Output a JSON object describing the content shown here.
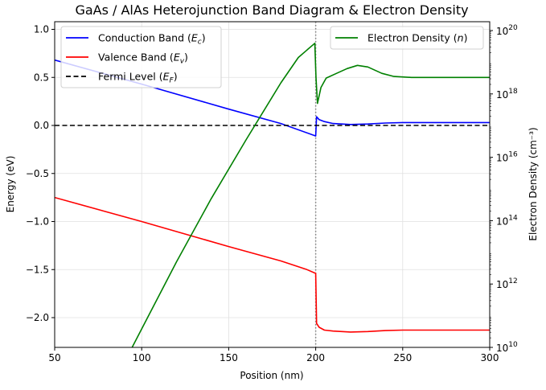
{
  "chart_data": {
    "type": "line",
    "title": "GaAs / AlAs Heterojunction Band Diagram & Electron Density",
    "xlabel": "Position (nm)",
    "ylabel": "Energy (eV)",
    "y2label": "Electron Density (cm⁻³)",
    "xlim": [
      50,
      300
    ],
    "ylim": [
      -2.31,
      1.08
    ],
    "y2scale": "log",
    "y2lim_exp": [
      10,
      20.05
    ],
    "xticks": [
      "50",
      "100",
      "150",
      "200",
      "250",
      "300"
    ],
    "yticks": [
      "1.0",
      "0.5",
      "0.0",
      "−0.5",
      "−1.0",
      "−1.5",
      "−2.0"
    ],
    "y2ticks_exp": [
      "20",
      "18",
      "16",
      "14",
      "12",
      "10"
    ],
    "grid": true,
    "interface_line_x": 200,
    "legend_left": [
      {
        "label": "Conduction Band (",
        "sym": "E",
        "sub": "c",
        "color": "#0000ff",
        "dash": false
      },
      {
        "label": "Valence Band (",
        "sym": "E",
        "sub": "v",
        "color": "#ff0000",
        "dash": false
      },
      {
        "label": "Fermi Level (",
        "sym": "E",
        "sub": "F",
        "color": "#000000",
        "dash": true
      }
    ],
    "legend_right": [
      {
        "label": "Electron Density (",
        "sym": "n",
        "color": "#008000"
      }
    ],
    "series": [
      {
        "name": "Conduction Band (Ec)",
        "axis": "left",
        "color": "#0000ff",
        "x": [
          50,
          100,
          150,
          180,
          200,
          200.5,
          202,
          205,
          210,
          220,
          230,
          240,
          250,
          275,
          300
        ],
        "y": [
          0.68,
          0.43,
          0.17,
          0.02,
          -0.11,
          0.09,
          0.06,
          0.04,
          0.02,
          0.01,
          0.015,
          0.025,
          0.03,
          0.03,
          0.03
        ]
      },
      {
        "name": "Valence Band (Ev)",
        "axis": "left",
        "color": "#ff0000",
        "x": [
          50,
          100,
          150,
          180,
          195,
          200,
          200.5,
          202,
          205,
          210,
          220,
          230,
          240,
          250,
          275,
          300
        ],
        "y": [
          -0.75,
          -1.0,
          -1.26,
          -1.41,
          -1.5,
          -1.54,
          -2.06,
          -2.1,
          -2.13,
          -2.14,
          -2.15,
          -2.145,
          -2.135,
          -2.13,
          -2.13,
          -2.13
        ]
      },
      {
        "name": "Fermi Level (EF)",
        "axis": "left",
        "color": "#000000",
        "dash": true,
        "x": [
          50,
          300
        ],
        "y": [
          0.0,
          0.0
        ]
      },
      {
        "name": "Electron Density (n)",
        "axis": "right",
        "color": "#008000",
        "x": [
          94.5,
          120,
          140,
          160,
          180,
          190,
          199.5,
          200.2,
          201,
          203,
          206,
          212,
          218,
          224,
          230,
          238,
          245,
          255,
          275,
          300
        ],
        "log10_y": [
          10.0,
          12.7,
          14.7,
          16.55,
          18.35,
          19.15,
          19.6,
          18.5,
          17.7,
          18.2,
          18.5,
          18.65,
          18.8,
          18.9,
          18.85,
          18.65,
          18.55,
          18.52,
          18.52,
          18.52
        ]
      }
    ]
  }
}
